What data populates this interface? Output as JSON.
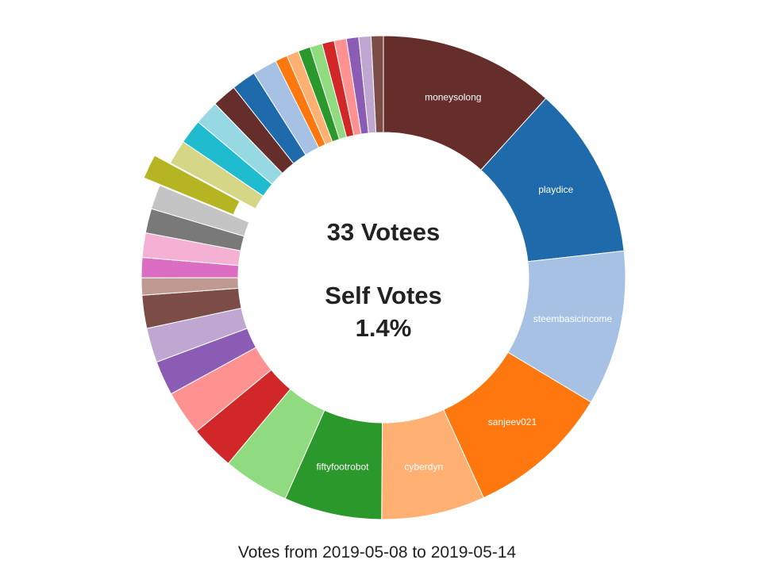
{
  "chart_data": {
    "type": "pie",
    "donut": true,
    "center": {
      "votees_label": "33 Votees",
      "self_votes_label": "Self Votes",
      "self_votes_value": "1.4%"
    },
    "footer": "Votes from 2019-05-08 to 2019-05-14",
    "highlighted_slice_index": 17,
    "slices": [
      {
        "label": "moneysolong",
        "value": 12.2,
        "color": "#652e2b"
      },
      {
        "label": "playdice",
        "value": 12.0,
        "color": "#1f6aaa"
      },
      {
        "label": "steembasicincome",
        "value": 10.8,
        "color": "#a6c1e4"
      },
      {
        "label": "sanjeev021",
        "value": 10.0,
        "color": "#ff770f"
      },
      {
        "label": "cyberdyn",
        "value": 7.2,
        "color": "#ffb072"
      },
      {
        "label": "fiftyfootrobot",
        "value": 6.8,
        "color": "#2a982b"
      },
      {
        "label": "",
        "value": 4.6,
        "color": "#90db7f"
      },
      {
        "label": "",
        "value": 3.1,
        "color": "#d12728"
      },
      {
        "label": "",
        "value": 3.1,
        "color": "#ff9191"
      },
      {
        "label": "",
        "value": 2.4,
        "color": "#8b5cb4"
      },
      {
        "label": "",
        "value": 2.4,
        "color": "#c0a7d2"
      },
      {
        "label": "",
        "value": 2.3,
        "color": "#7c4c47"
      },
      {
        "label": "",
        "value": 1.2,
        "color": "#c09990"
      },
      {
        "label": "",
        "value": 1.4,
        "color": "#db6dc2"
      },
      {
        "label": "",
        "value": 1.7,
        "color": "#f4b1d3"
      },
      {
        "label": "",
        "value": 1.7,
        "color": "#797979"
      },
      {
        "label": "",
        "value": 1.7,
        "color": "#c4c4c4"
      },
      {
        "label": "",
        "value": 1.7,
        "color": "#b5b524"
      },
      {
        "label": "",
        "value": 1.7,
        "color": "#d5d686"
      },
      {
        "label": "",
        "value": 1.7,
        "color": "#1fbbce"
      },
      {
        "label": "",
        "value": 1.7,
        "color": "#96d9e3"
      },
      {
        "label": "",
        "value": 1.7,
        "color": "#652e2b"
      },
      {
        "label": "",
        "value": 1.7,
        "color": "#1f6aaa"
      },
      {
        "label": "",
        "value": 1.7,
        "color": "#a6c1e4"
      },
      {
        "label": "",
        "value": 0.85,
        "color": "#ff770f"
      },
      {
        "label": "",
        "value": 0.85,
        "color": "#ffb072"
      },
      {
        "label": "",
        "value": 0.85,
        "color": "#2a982b"
      },
      {
        "label": "",
        "value": 0.85,
        "color": "#90db7f"
      },
      {
        "label": "",
        "value": 0.85,
        "color": "#d12728"
      },
      {
        "label": "",
        "value": 0.85,
        "color": "#ff9191"
      },
      {
        "label": "",
        "value": 0.85,
        "color": "#8b5cb4"
      },
      {
        "label": "",
        "value": 0.85,
        "color": "#c0a7d2"
      },
      {
        "label": "",
        "value": 0.85,
        "color": "#7c4c47"
      }
    ]
  }
}
